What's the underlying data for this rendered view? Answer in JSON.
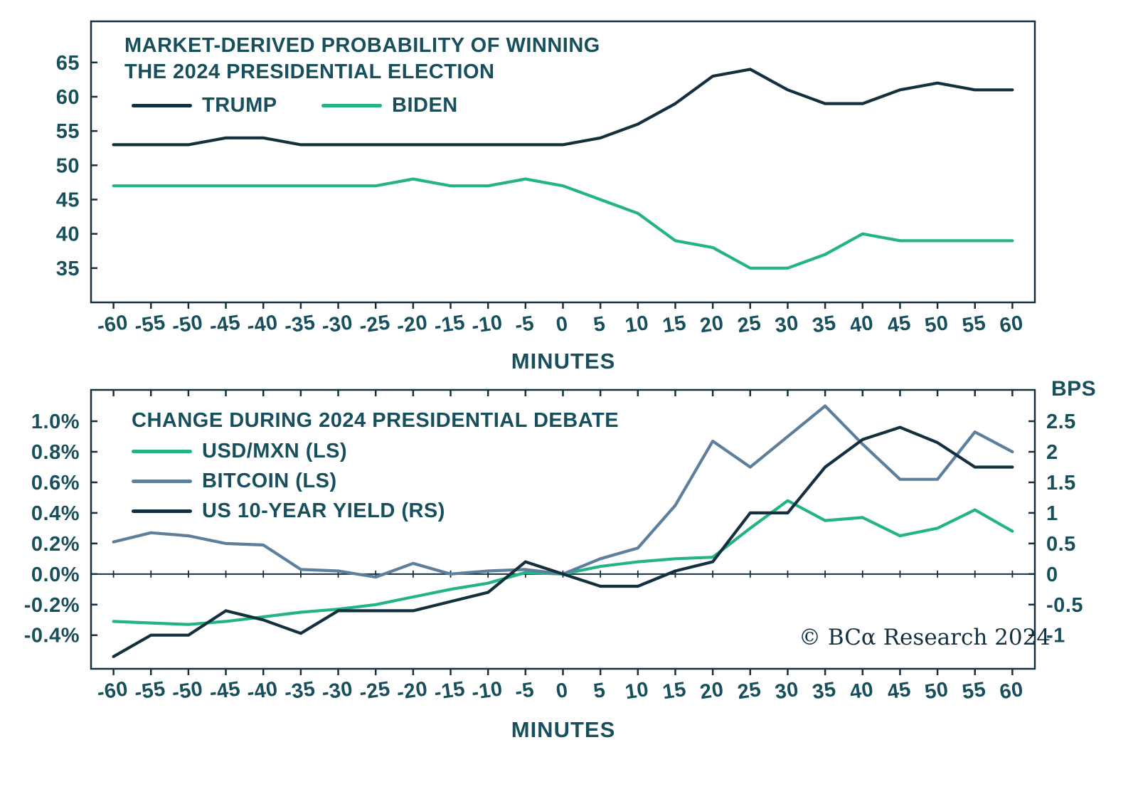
{
  "colors": {
    "dark_navy": "#14303e",
    "teal_text": "#17505c",
    "green": "#23b384",
    "slate_blue": "#5d7f9b",
    "background": "#ffffff"
  },
  "chart_data": [
    {
      "type": "line",
      "title": "MARKET-DERIVED PROBABILITY OF WINNING THE 2024 PRESIDENTIAL ELECTION",
      "title_lines": [
        "MARKET-DERIVED PROBABILITY OF WINNING",
        "THE 2024 PRESIDENTIAL ELECTION"
      ],
      "xlabel": "MINUTES",
      "x": [
        -60,
        -55,
        -50,
        -45,
        -40,
        -35,
        -30,
        -25,
        -20,
        -15,
        -10,
        -5,
        0,
        5,
        10,
        15,
        20,
        25,
        30,
        35,
        40,
        45,
        50,
        55,
        60
      ],
      "ylim": [
        30,
        71
      ],
      "y_ticks": [
        65,
        60,
        55,
        50,
        45,
        40,
        35
      ],
      "legend_position": "top-left-inline",
      "grid": false,
      "series": [
        {
          "name": "TRUMP",
          "color_key": "dark_navy",
          "values": [
            53,
            53,
            53,
            54,
            54,
            53,
            53,
            53,
            53,
            53,
            53,
            53,
            53,
            54,
            56,
            59,
            63,
            64,
            61,
            59,
            59,
            61,
            62,
            61,
            61
          ]
        },
        {
          "name": "BIDEN",
          "color_key": "green",
          "values": [
            47,
            47,
            47,
            47,
            47,
            47,
            47,
            47,
            48,
            47,
            47,
            48,
            47,
            45,
            43,
            39,
            38,
            35,
            35,
            37,
            40,
            39,
            39,
            39,
            39
          ]
        }
      ]
    },
    {
      "type": "line",
      "title": "CHANGE DURING 2024 PRESIDENTIAL DEBATE",
      "title_lines": [
        "CHANGE DURING 2024 PRESIDENTIAL DEBATE"
      ],
      "xlabel": "MINUTES",
      "right_axis_label": "BPS",
      "watermark": "© BCα Research 2024",
      "x": [
        -60,
        -55,
        -50,
        -45,
        -40,
        -35,
        -30,
        -25,
        -20,
        -15,
        -10,
        -5,
        0,
        5,
        10,
        15,
        20,
        25,
        30,
        35,
        40,
        45,
        50,
        55,
        60
      ],
      "ylim_left_pct": [
        -0.62,
        1.205
      ],
      "y_ticks_left": [
        "1.0%",
        "0.8%",
        "0.6%",
        "0.4%",
        "0.2%",
        "0.0%",
        "-0.2%",
        "-0.4%"
      ],
      "y_ticks_right": [
        "2.5",
        "2",
        "1.5",
        "1",
        "0.5",
        "0",
        "-0.5",
        "-1"
      ],
      "right_axis_scale_bps_per_pct": 2.5,
      "zero_line": true,
      "grid": false,
      "legend_position": "top-left-stacked",
      "series": [
        {
          "name": "USD/MXN (LS)",
          "axis": "left",
          "unit": "pct",
          "color_key": "green",
          "values": [
            -0.31,
            -0.32,
            -0.33,
            -0.31,
            -0.28,
            -0.25,
            -0.23,
            -0.2,
            -0.15,
            -0.1,
            -0.06,
            0.01,
            0.0,
            0.05,
            0.08,
            0.1,
            0.11,
            0.3,
            0.48,
            0.35,
            0.37,
            0.25,
            0.3,
            0.42,
            0.28
          ]
        },
        {
          "name": "BITCOIN (LS)",
          "axis": "left",
          "unit": "pct",
          "color_key": "slate_blue",
          "values": [
            0.21,
            0.27,
            0.25,
            0.2,
            0.19,
            0.03,
            0.02,
            -0.02,
            0.07,
            0.0,
            0.02,
            0.03,
            0.0,
            0.1,
            0.17,
            0.45,
            0.87,
            0.7,
            0.9,
            1.1,
            0.85,
            0.62,
            0.62,
            0.93,
            0.8
          ]
        },
        {
          "name": "US 10-YEAR YIELD (RS)",
          "axis": "right",
          "unit": "bps",
          "color_key": "dark_navy",
          "values": [
            -1.35,
            -1.0,
            -1.0,
            -0.6,
            -0.75,
            -0.97,
            -0.6,
            -0.6,
            -0.6,
            -0.45,
            -0.3,
            0.2,
            0.0,
            -0.2,
            -0.2,
            0.05,
            0.2,
            1.0,
            1.0,
            1.75,
            2.2,
            2.4,
            2.15,
            1.75,
            1.75
          ]
        }
      ]
    }
  ]
}
